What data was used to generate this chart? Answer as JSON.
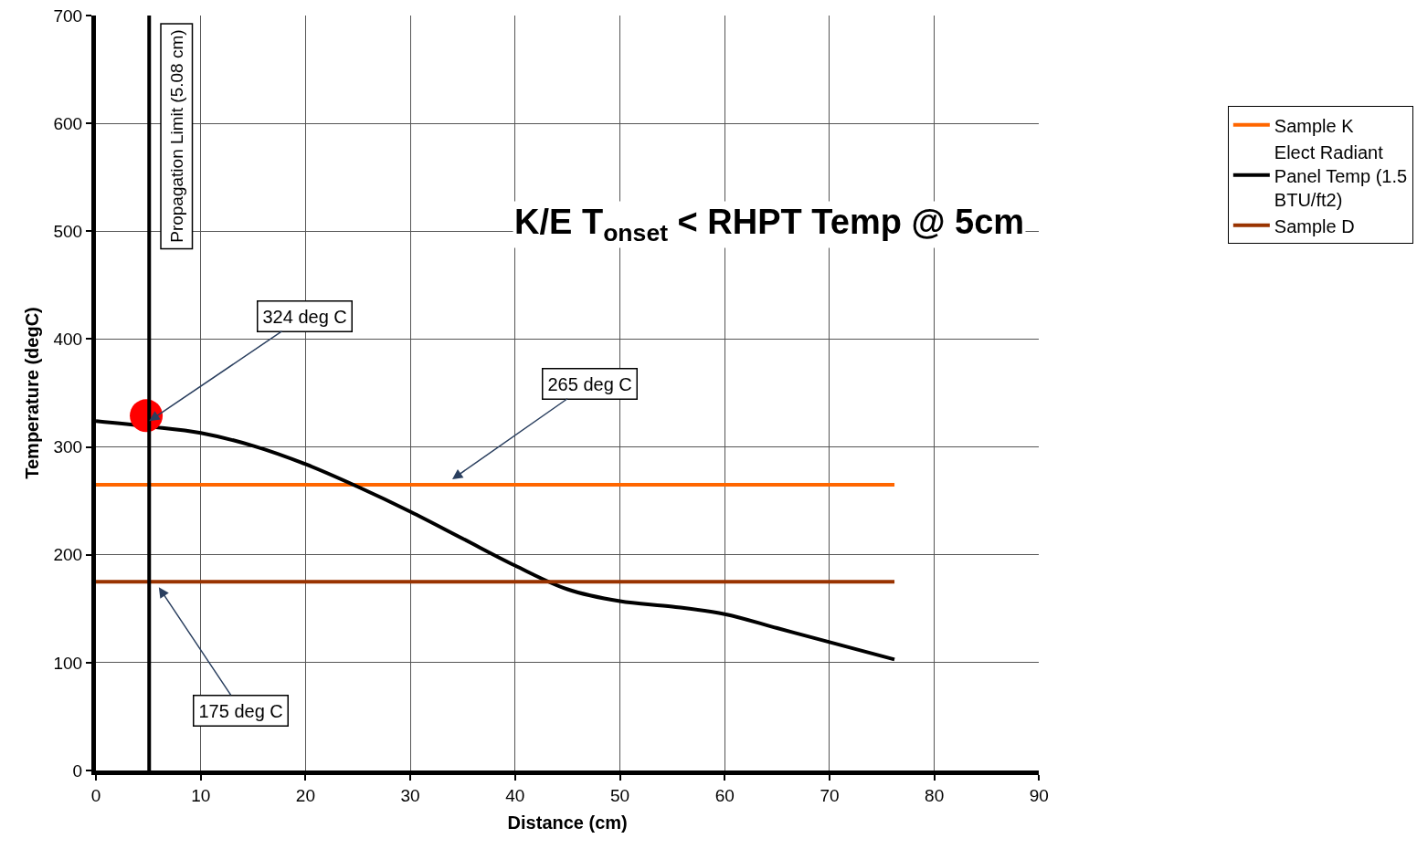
{
  "chart_data": {
    "type": "line",
    "title": "K/E T$_{onset}$ < RHPT Temp @ 5cm",
    "xlabel": "Distance (cm)",
    "ylabel": "Temperature (degC)",
    "xlim": [
      0,
      90
    ],
    "xticks": [
      0,
      10,
      20,
      30,
      40,
      50,
      60,
      70,
      80,
      90
    ],
    "ylim": [
      0,
      700
    ],
    "yticks": [
      0,
      100,
      200,
      300,
      400,
      500,
      600,
      700
    ],
    "grid": true,
    "legend": "right",
    "marker": "none",
    "line_style": "solid",
    "series": [
      {
        "name": "Sample K",
        "color": "#ff6600",
        "x": [
          0,
          76.2
        ],
        "values": [
          265,
          265
        ]
      },
      {
        "name": "Elect Radiant Panel Temp (1.5 BTU/ft2)",
        "color": "#000000",
        "x": [
          0,
          5,
          10,
          15,
          20,
          25,
          30,
          35,
          40,
          45,
          50,
          55,
          60,
          65,
          70,
          76.2
        ],
        "values": [
          324,
          319,
          313,
          301,
          284,
          263,
          240,
          215,
          190,
          168,
          157,
          152,
          145,
          132,
          119,
          103
        ]
      },
      {
        "name": "Sample D",
        "color": "#993300",
        "x": [
          0,
          76.2
        ],
        "values": [
          175,
          175
        ]
      },
      {
        "type": "scatter",
        "marker": "circle",
        "color": "#ff0000",
        "x": [
          4.8
        ],
        "values": [
          329
        ]
      }
    ],
    "ref_lines": [
      {
        "axis": "x",
        "value": 5.08,
        "label": "Propagation Limit (5.08 cm)",
        "color": "#000000"
      }
    ],
    "annotations": [
      {
        "text": "324 deg C",
        "x": 5.08,
        "y": 324
      },
      {
        "text": "265 deg C",
        "x": 34,
        "y": 270
      },
      {
        "text": "175 deg C",
        "x": 6,
        "y": 170
      }
    ]
  }
}
